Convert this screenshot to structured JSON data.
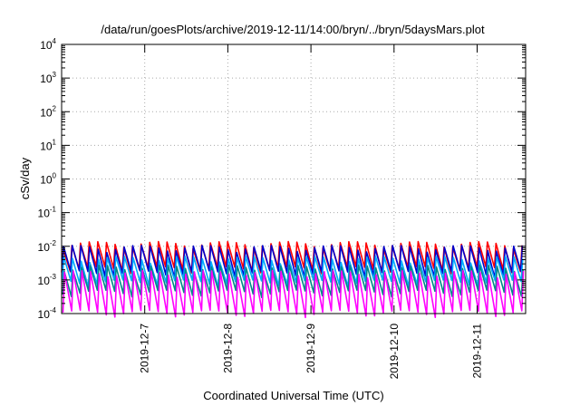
{
  "chart_data": {
    "type": "line",
    "title": "/data/run/goesPlots/archive/2019-12-11/14:00/bryn/../bryn/5daysMars.plot",
    "xlabel": "Coordinated Universal Time (UTC)",
    "ylabel": "cSv/day",
    "yscale": "log",
    "ylim": [
      0.0001,
      10000
    ],
    "y_ticks": [
      {
        "base": "10",
        "exp": "4",
        "value": 10000
      },
      {
        "base": "10",
        "exp": "3",
        "value": 1000
      },
      {
        "base": "10",
        "exp": "2",
        "value": 100
      },
      {
        "base": "10",
        "exp": "1",
        "value": 10
      },
      {
        "base": "10",
        "exp": "0",
        "value": 1
      },
      {
        "base": "10",
        "exp": "-1",
        "value": 0.1
      },
      {
        "base": "10",
        "exp": "-2",
        "value": 0.01
      },
      {
        "base": "10",
        "exp": "-3",
        "value": 0.001
      },
      {
        "base": "10",
        "exp": "-4",
        "value": 0.0001
      }
    ],
    "xlim": [
      "2019-12-06T00:00",
      "2019-12-11T14:00"
    ],
    "x_ticks": [
      "2019-12-7",
      "2019-12-8",
      "2019-12-9",
      "2019-12-10",
      "2019-12-11"
    ],
    "x_tick_dates": [
      "2019-12-07T00:00",
      "2019-12-08T00:00",
      "2019-12-09T00:00",
      "2019-12-10T00:00",
      "2019-12-11T00:00"
    ],
    "grid": true,
    "legend": "none",
    "sawtooth_period_hours": 2.5,
    "series": [
      {
        "color": "#ff0000",
        "typical_peak": 0.011,
        "typical_trough": 0.002
      },
      {
        "color": "#0000cc",
        "typical_peak": 0.0085,
        "typical_trough": 0.0015
      },
      {
        "color": "#00aaff",
        "typical_peak": 0.004,
        "typical_trough": 0.0008
      },
      {
        "color": "#008888",
        "typical_peak": 0.0022,
        "typical_trough": 0.0004
      },
      {
        "color": "#ff00ff",
        "typical_peak": 0.0015,
        "typical_trough": 0.0001
      }
    ]
  }
}
